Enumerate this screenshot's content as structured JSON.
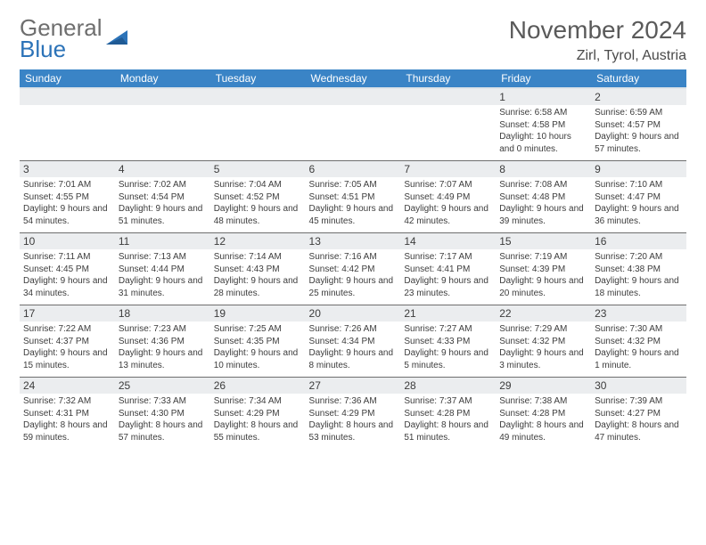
{
  "logo": {
    "word1": "General",
    "word2": "Blue",
    "triangle_color": "#2c73b8"
  },
  "title": "November 2024",
  "location": "Zirl, Tyrol, Austria",
  "header_bg": "#3a84c6",
  "header_fg": "#ffffff",
  "daynum_bg": "#ebedef",
  "border_color": "#6e6e6e",
  "weekdays": [
    "Sunday",
    "Monday",
    "Tuesday",
    "Wednesday",
    "Thursday",
    "Friday",
    "Saturday"
  ],
  "weeks": [
    [
      null,
      null,
      null,
      null,
      null,
      {
        "n": "1",
        "sr": "6:58 AM",
        "ss": "4:58 PM",
        "dl": "10 hours and 0 minutes."
      },
      {
        "n": "2",
        "sr": "6:59 AM",
        "ss": "4:57 PM",
        "dl": "9 hours and 57 minutes."
      }
    ],
    [
      {
        "n": "3",
        "sr": "7:01 AM",
        "ss": "4:55 PM",
        "dl": "9 hours and 54 minutes."
      },
      {
        "n": "4",
        "sr": "7:02 AM",
        "ss": "4:54 PM",
        "dl": "9 hours and 51 minutes."
      },
      {
        "n": "5",
        "sr": "7:04 AM",
        "ss": "4:52 PM",
        "dl": "9 hours and 48 minutes."
      },
      {
        "n": "6",
        "sr": "7:05 AM",
        "ss": "4:51 PM",
        "dl": "9 hours and 45 minutes."
      },
      {
        "n": "7",
        "sr": "7:07 AM",
        "ss": "4:49 PM",
        "dl": "9 hours and 42 minutes."
      },
      {
        "n": "8",
        "sr": "7:08 AM",
        "ss": "4:48 PM",
        "dl": "9 hours and 39 minutes."
      },
      {
        "n": "9",
        "sr": "7:10 AM",
        "ss": "4:47 PM",
        "dl": "9 hours and 36 minutes."
      }
    ],
    [
      {
        "n": "10",
        "sr": "7:11 AM",
        "ss": "4:45 PM",
        "dl": "9 hours and 34 minutes."
      },
      {
        "n": "11",
        "sr": "7:13 AM",
        "ss": "4:44 PM",
        "dl": "9 hours and 31 minutes."
      },
      {
        "n": "12",
        "sr": "7:14 AM",
        "ss": "4:43 PM",
        "dl": "9 hours and 28 minutes."
      },
      {
        "n": "13",
        "sr": "7:16 AM",
        "ss": "4:42 PM",
        "dl": "9 hours and 25 minutes."
      },
      {
        "n": "14",
        "sr": "7:17 AM",
        "ss": "4:41 PM",
        "dl": "9 hours and 23 minutes."
      },
      {
        "n": "15",
        "sr": "7:19 AM",
        "ss": "4:39 PM",
        "dl": "9 hours and 20 minutes."
      },
      {
        "n": "16",
        "sr": "7:20 AM",
        "ss": "4:38 PM",
        "dl": "9 hours and 18 minutes."
      }
    ],
    [
      {
        "n": "17",
        "sr": "7:22 AM",
        "ss": "4:37 PM",
        "dl": "9 hours and 15 minutes."
      },
      {
        "n": "18",
        "sr": "7:23 AM",
        "ss": "4:36 PM",
        "dl": "9 hours and 13 minutes."
      },
      {
        "n": "19",
        "sr": "7:25 AM",
        "ss": "4:35 PM",
        "dl": "9 hours and 10 minutes."
      },
      {
        "n": "20",
        "sr": "7:26 AM",
        "ss": "4:34 PM",
        "dl": "9 hours and 8 minutes."
      },
      {
        "n": "21",
        "sr": "7:27 AM",
        "ss": "4:33 PM",
        "dl": "9 hours and 5 minutes."
      },
      {
        "n": "22",
        "sr": "7:29 AM",
        "ss": "4:32 PM",
        "dl": "9 hours and 3 minutes."
      },
      {
        "n": "23",
        "sr": "7:30 AM",
        "ss": "4:32 PM",
        "dl": "9 hours and 1 minute."
      }
    ],
    [
      {
        "n": "24",
        "sr": "7:32 AM",
        "ss": "4:31 PM",
        "dl": "8 hours and 59 minutes."
      },
      {
        "n": "25",
        "sr": "7:33 AM",
        "ss": "4:30 PM",
        "dl": "8 hours and 57 minutes."
      },
      {
        "n": "26",
        "sr": "7:34 AM",
        "ss": "4:29 PM",
        "dl": "8 hours and 55 minutes."
      },
      {
        "n": "27",
        "sr": "7:36 AM",
        "ss": "4:29 PM",
        "dl": "8 hours and 53 minutes."
      },
      {
        "n": "28",
        "sr": "7:37 AM",
        "ss": "4:28 PM",
        "dl": "8 hours and 51 minutes."
      },
      {
        "n": "29",
        "sr": "7:38 AM",
        "ss": "4:28 PM",
        "dl": "8 hours and 49 minutes."
      },
      {
        "n": "30",
        "sr": "7:39 AM",
        "ss": "4:27 PM",
        "dl": "8 hours and 47 minutes."
      }
    ]
  ],
  "labels": {
    "sunrise": "Sunrise: ",
    "sunset": "Sunset: ",
    "daylight": "Daylight: "
  }
}
